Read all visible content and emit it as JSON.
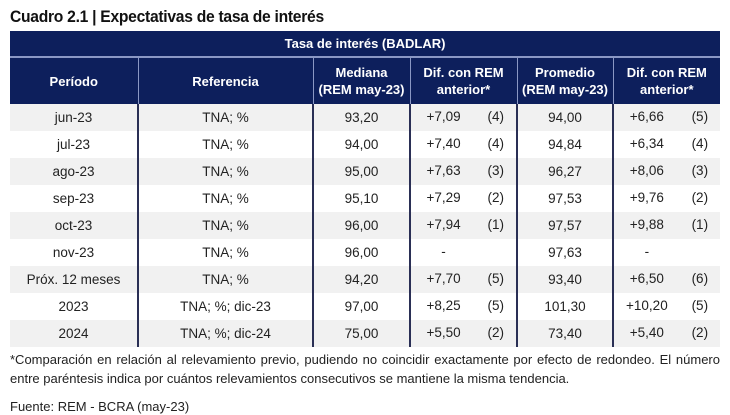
{
  "title": "Cuadro 2.1 | Expectativas de tasa de interés",
  "table": {
    "band": "Tasa de interés (BADLAR)",
    "headers": {
      "periodo": "Período",
      "referencia": "Referencia",
      "mediana_1": "Mediana",
      "mediana_2": "(REM may-23)",
      "dif_1": "Dif. con REM",
      "dif_2": "anterior*",
      "promedio_1": "Promedio",
      "promedio_2": "(REM may-23)",
      "dif2_1": "Dif. con REM",
      "dif2_2": "anterior*"
    },
    "rows": [
      {
        "periodo": "jun-23",
        "referencia": "TNA; %",
        "mediana": "93,20",
        "dif_med": "+7,09",
        "n_med": "(4)",
        "promedio": "94,00",
        "dif_prom": "+6,66",
        "n_prom": "(5)"
      },
      {
        "periodo": "jul-23",
        "referencia": "TNA; %",
        "mediana": "94,00",
        "dif_med": "+7,40",
        "n_med": "(4)",
        "promedio": "94,84",
        "dif_prom": "+6,34",
        "n_prom": "(4)"
      },
      {
        "periodo": "ago-23",
        "referencia": "TNA; %",
        "mediana": "95,00",
        "dif_med": "+7,63",
        "n_med": "(3)",
        "promedio": "96,27",
        "dif_prom": "+8,06",
        "n_prom": "(3)"
      },
      {
        "periodo": "sep-23",
        "referencia": "TNA; %",
        "mediana": "95,10",
        "dif_med": "+7,29",
        "n_med": "(2)",
        "promedio": "97,53",
        "dif_prom": "+9,76",
        "n_prom": "(2)"
      },
      {
        "periodo": "oct-23",
        "referencia": "TNA; %",
        "mediana": "96,00",
        "dif_med": "+7,94",
        "n_med": "(1)",
        "promedio": "97,57",
        "dif_prom": "+9,88",
        "n_prom": "(1)"
      },
      {
        "periodo": "nov-23",
        "referencia": "TNA; %",
        "mediana": "96,00",
        "dif_med": "-",
        "n_med": "",
        "promedio": "97,63",
        "dif_prom": "-",
        "n_prom": ""
      },
      {
        "periodo": "Próx. 12 meses",
        "referencia": "TNA; %",
        "mediana": "94,20",
        "dif_med": "+7,70",
        "n_med": "(5)",
        "promedio": "93,40",
        "dif_prom": "+6,50",
        "n_prom": "(6)"
      },
      {
        "periodo": "2023",
        "referencia": "TNA; %; dic-23",
        "mediana": "97,00",
        "dif_med": "+8,25",
        "n_med": "(5)",
        "promedio": "101,30",
        "dif_prom": "+10,20",
        "n_prom": "(5)"
      },
      {
        "periodo": "2024",
        "referencia": "TNA; %; dic-24",
        "mediana": "75,00",
        "dif_med": "+5,50",
        "n_med": "(2)",
        "promedio": "73,40",
        "dif_prom": "+5,40",
        "n_prom": "(2)"
      }
    ]
  },
  "note": "*Comparación en relación al relevamiento previo, pudiendo no coincidir exactamente por efecto de redondeo. El número entre paréntesis indica por cuántos relevamientos consecutivos se mantiene la misma tendencia.",
  "source": "Fuente: REM - BCRA (may-23)"
}
